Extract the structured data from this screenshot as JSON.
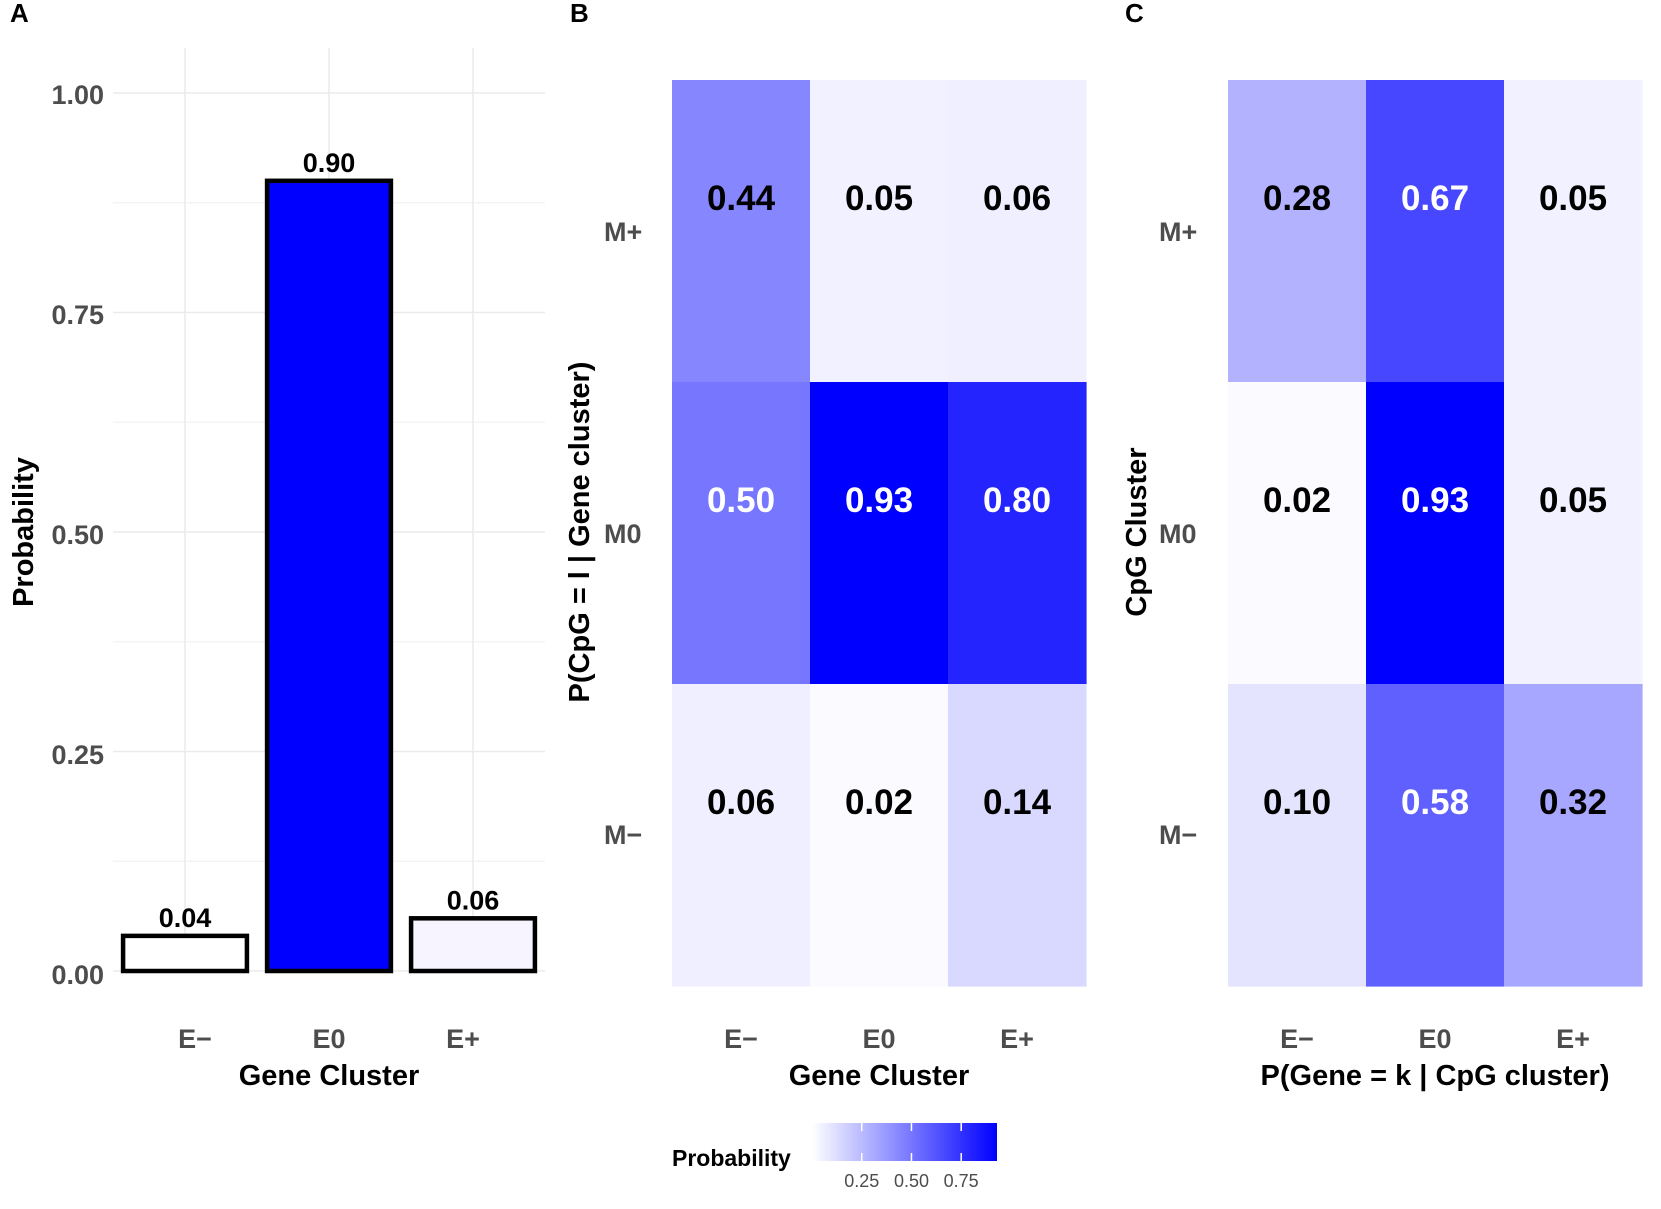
{
  "chart_data": [
    {
      "panel": "A",
      "type": "bar",
      "categories": [
        "E−",
        "E0",
        "E+"
      ],
      "values": [
        0.04,
        0.9,
        0.06
      ],
      "labels": [
        "0.04",
        "0.90",
        "0.06"
      ],
      "fill_colors": [
        "#ffffff",
        "#0000ff",
        "#f7f4ff"
      ],
      "xlabel": "Gene Cluster",
      "ylabel": "Probability",
      "ylim": [
        0,
        1.0
      ],
      "yticks": [
        "0.00",
        "0.25",
        "0.50",
        "0.75",
        "1.00"
      ],
      "grid": true
    },
    {
      "panel": "B",
      "type": "heatmap",
      "x_categories": [
        "E−",
        "E0",
        "E+"
      ],
      "y_categories": [
        "M+",
        "M0",
        "M−"
      ],
      "values": [
        [
          0.44,
          0.05,
          0.06
        ],
        [
          0.5,
          0.93,
          0.8
        ],
        [
          0.06,
          0.02,
          0.14
        ]
      ],
      "labels": [
        [
          "0.44",
          "0.05",
          "0.06"
        ],
        [
          "0.50",
          "0.93",
          "0.80"
        ],
        [
          "0.06",
          "0.02",
          "0.14"
        ]
      ],
      "xlabel": "Gene Cluster",
      "ylabel": "P(CpG = l | Gene cluster)"
    },
    {
      "panel": "C",
      "type": "heatmap",
      "x_categories": [
        "E−",
        "E0",
        "E+"
      ],
      "y_categories": [
        "M+",
        "M0",
        "M−"
      ],
      "values": [
        [
          0.28,
          0.67,
          0.05
        ],
        [
          0.02,
          0.93,
          0.05
        ],
        [
          0.1,
          0.58,
          0.32
        ]
      ],
      "labels": [
        [
          "0.28",
          "0.67",
          "0.05"
        ],
        [
          "0.02",
          "0.93",
          "0.05"
        ],
        [
          "0.10",
          "0.58",
          "0.32"
        ]
      ],
      "xlabel": "P(Gene = k | CpG cluster)",
      "ylabel": "CpG Cluster"
    }
  ],
  "legend": {
    "title": "Probability",
    "ticks": [
      "0.25",
      "0.50",
      "0.75"
    ],
    "tick_values": [
      0.25,
      0.5,
      0.75
    ],
    "range": [
      0,
      0.93
    ],
    "low_color": "#ffffff",
    "high_color": "#0000ff"
  }
}
